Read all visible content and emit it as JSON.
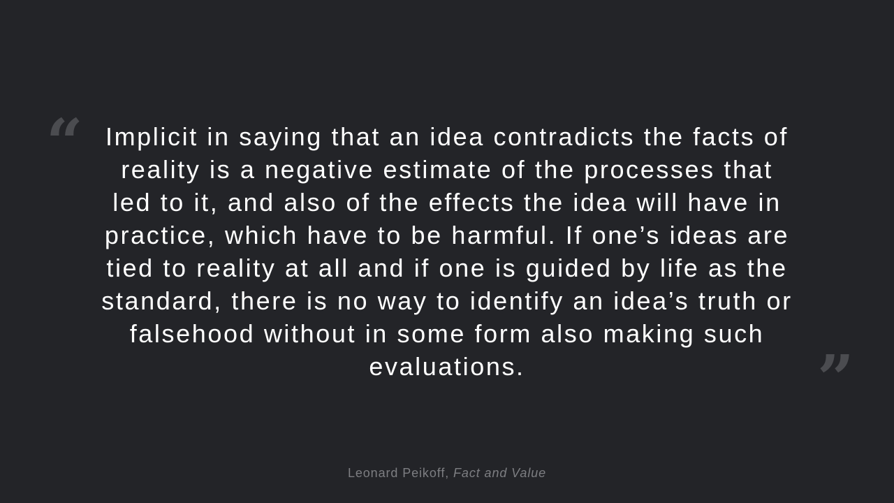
{
  "quote": {
    "open_mark": "“",
    "close_mark": "”",
    "text": "Implicit in saying that an idea contradicts the facts of reality is a negative estimate of the processes that led to it, and also of the effects the idea will have in practice, which have to be harmful. If one’s ideas are tied to reality at all and if one is guided by life as the standard, there is no way to identify an idea’s truth or falsehood without in some form also making such evaluations."
  },
  "attribution": {
    "author": "Leonard Peikoff",
    "separator": ", ",
    "work": "Fact and Value"
  },
  "colors": {
    "background": "#232428",
    "quote_text": "#ffffff",
    "quote_marks": "#4b4c50",
    "attribution": "#7d7e82"
  }
}
